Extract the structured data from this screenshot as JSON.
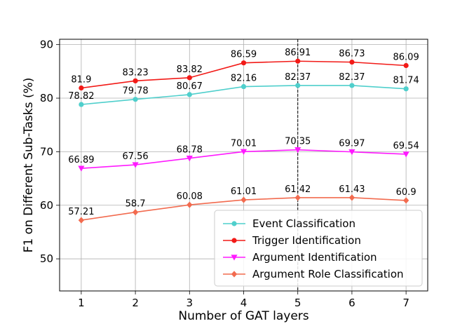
{
  "chart_data": {
    "type": "line",
    "title": "",
    "xlabel": "Number of GAT layers",
    "ylabel": "F1 on Different Sub-Tasks (%)",
    "x": [
      1,
      2,
      3,
      4,
      5,
      6,
      7
    ],
    "x_tick_labels": [
      "1",
      "2",
      "3",
      "4",
      "5",
      "6",
      "7"
    ],
    "xlim": [
      0.6,
      7.4
    ],
    "ylim": [
      44,
      91
    ],
    "y_ticks": [
      50,
      60,
      70,
      80,
      90
    ],
    "y_tick_labels": [
      "50",
      "60",
      "70",
      "80",
      "90"
    ],
    "grid": true,
    "legend_position": "lower-right",
    "highlight_x": 5,
    "series": [
      {
        "name": "Event Classification",
        "color": "#4fcfcc",
        "marker": "circle",
        "values": [
          78.82,
          79.78,
          80.67,
          82.16,
          82.37,
          82.37,
          81.74
        ],
        "labels": [
          "78.82",
          "79.78",
          "80.67",
          "82.16",
          "82.37",
          "82.37",
          "81.74"
        ]
      },
      {
        "name": "Trigger Identification",
        "color": "#f21a17",
        "marker": "circle",
        "values": [
          81.9,
          83.23,
          83.82,
          86.59,
          86.91,
          86.73,
          86.09
        ],
        "labels": [
          "81.9",
          "83.23",
          "83.82",
          "86.59",
          "86.91",
          "86.73",
          "86.09"
        ]
      },
      {
        "name": "Argument Identification",
        "color": "#ff1aff",
        "marker": "triangle-down",
        "values": [
          66.89,
          67.56,
          68.78,
          70.01,
          70.35,
          69.97,
          69.54
        ],
        "labels": [
          "66.89",
          "67.56",
          "68.78",
          "70.01",
          "70.35",
          "69.97",
          "69.54"
        ]
      },
      {
        "name": "Argument Role Classification",
        "color": "#f26b4f",
        "marker": "diamond",
        "values": [
          57.21,
          58.7,
          60.08,
          61.01,
          61.42,
          61.43,
          60.9
        ],
        "labels": [
          "57.21",
          "58.7",
          "60.08",
          "61.01",
          "61.42",
          "61.43",
          "60.9"
        ]
      }
    ]
  }
}
